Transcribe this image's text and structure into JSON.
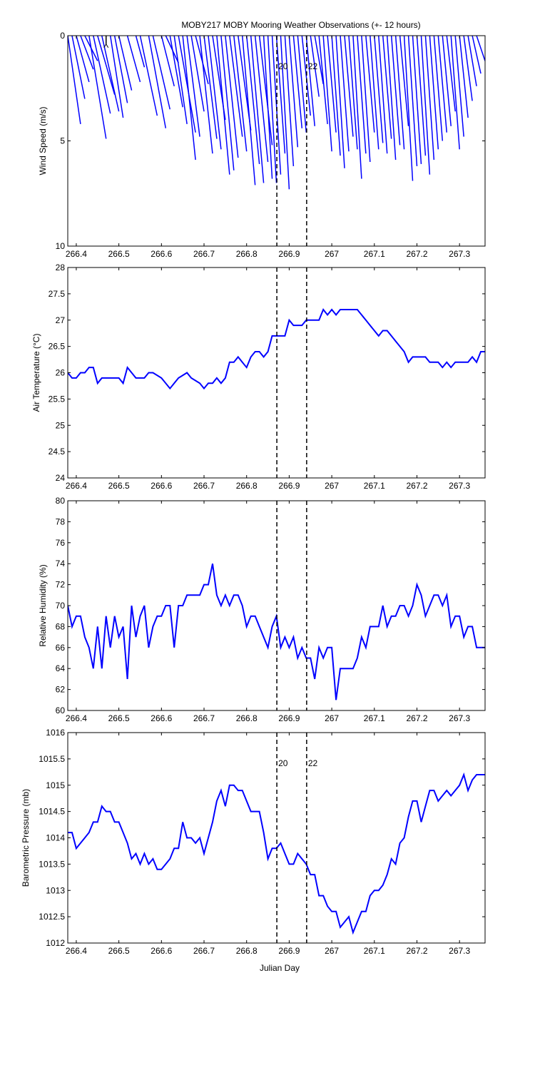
{
  "title": "MOBY217 MOBY Mooring Weather Observations (+- 12 hours)",
  "colors": {
    "series": "#0000ff",
    "marker_label": "#cc0000",
    "axis": "#000000"
  },
  "x_axis": {
    "label": "Julian Day",
    "range": [
      266.38,
      267.36
    ],
    "ticks": [
      "266.4",
      "266.5",
      "266.6",
      "266.7",
      "266.8",
      "266.9",
      "267",
      "267.1",
      "267.2",
      "267.3"
    ]
  },
  "markers": [
    {
      "x": 266.871,
      "label": "20"
    },
    {
      "x": 266.941,
      "label": "22"
    }
  ],
  "chart_data": [
    {
      "type": "vector",
      "ylabel": "Wind Speed (m/s)",
      "ylim": [
        0,
        10
      ],
      "y_reversed": true,
      "yticks": [
        "0",
        "5",
        "10"
      ],
      "grid": false,
      "vectors": [
        {
          "x": 266.38,
          "x_end": 266.41,
          "y_end": 4.2
        },
        {
          "x": 266.39,
          "x_end": 266.42,
          "y_end": 3.0
        },
        {
          "x": 266.4,
          "x_end": 266.43,
          "y_end": 2.2
        },
        {
          "x": 266.41,
          "x_end": 266.44,
          "y_end": 1.6
        },
        {
          "x": 266.42,
          "x_end": 266.45,
          "y_end": 1.2
        },
        {
          "x": 266.43,
          "x_end": 266.47,
          "y_end": 4.9
        },
        {
          "x": 266.44,
          "x_end": 266.48,
          "y_end": 3.7
        },
        {
          "x": 266.45,
          "x_end": 266.49,
          "y_end": 2.8
        },
        {
          "x": 266.46,
          "x_end": 266.5,
          "y_end": 3.6
        },
        {
          "x": 266.47,
          "x_end": 266.47,
          "y_end": 0.4,
          "highlight": true
        },
        {
          "x": 266.48,
          "x_end": 266.51,
          "y_end": 3.9
        },
        {
          "x": 266.49,
          "x_end": 266.52,
          "y_end": 3.2
        },
        {
          "x": 266.5,
          "x_end": 266.53,
          "y_end": 2.6
        },
        {
          "x": 266.52,
          "x_end": 266.55,
          "y_end": 2.2
        },
        {
          "x": 266.54,
          "x_end": 266.56,
          "y_end": 1.5
        },
        {
          "x": 266.55,
          "x_end": 266.59,
          "y_end": 3.8
        },
        {
          "x": 266.57,
          "x_end": 266.61,
          "y_end": 4.4
        },
        {
          "x": 266.58,
          "x_end": 266.62,
          "y_end": 3.5
        },
        {
          "x": 266.6,
          "x_end": 266.63,
          "y_end": 2.4
        },
        {
          "x": 266.61,
          "x_end": 266.64,
          "y_end": 1.3
        },
        {
          "x": 266.62,
          "x_end": 266.65,
          "y_end": 3.4
        },
        {
          "x": 266.63,
          "x_end": 266.66,
          "y_end": 4.2
        },
        {
          "x": 266.64,
          "x_end": 266.68,
          "y_end": 4.6
        },
        {
          "x": 266.65,
          "x_end": 266.68,
          "y_end": 5.9
        },
        {
          "x": 266.66,
          "x_end": 266.69,
          "y_end": 4.8
        },
        {
          "x": 266.67,
          "x_end": 266.7,
          "y_end": 3.6
        },
        {
          "x": 266.68,
          "x_end": 266.71,
          "y_end": 2.3
        },
        {
          "x": 266.69,
          "x_end": 266.72,
          "y_end": 5.6
        },
        {
          "x": 266.7,
          "x_end": 266.73,
          "y_end": 4.9
        },
        {
          "x": 266.71,
          "x_end": 266.74,
          "y_end": 5.4
        },
        {
          "x": 266.72,
          "x_end": 266.75,
          "y_end": 4.0
        },
        {
          "x": 266.73,
          "x_end": 266.76,
          "y_end": 6.6
        },
        {
          "x": 266.74,
          "x_end": 266.77,
          "y_end": 6.4
        },
        {
          "x": 266.75,
          "x_end": 266.78,
          "y_end": 5.8
        },
        {
          "x": 266.76,
          "x_end": 266.79,
          "y_end": 4.8
        },
        {
          "x": 266.77,
          "x_end": 266.8,
          "y_end": 5.5
        },
        {
          "x": 266.78,
          "x_end": 266.81,
          "y_end": 4.5
        },
        {
          "x": 266.79,
          "x_end": 266.82,
          "y_end": 7.1
        },
        {
          "x": 266.8,
          "x_end": 266.83,
          "y_end": 6.1
        },
        {
          "x": 266.81,
          "x_end": 266.84,
          "y_end": 7.0
        },
        {
          "x": 266.82,
          "x_end": 266.85,
          "y_end": 6.0
        },
        {
          "x": 266.83,
          "x_end": 266.86,
          "y_end": 5.2
        },
        {
          "x": 266.84,
          "x_end": 266.86,
          "y_end": 6.8
        },
        {
          "x": 266.85,
          "x_end": 266.87,
          "y_end": 7.0
        },
        {
          "x": 266.86,
          "x_end": 266.88,
          "y_end": 6.6
        },
        {
          "x": 266.87,
          "x_end": 266.89,
          "y_end": 5.6
        },
        {
          "x": 266.88,
          "x_end": 266.9,
          "y_end": 7.3
        },
        {
          "x": 266.89,
          "x_end": 266.91,
          "y_end": 6.2
        },
        {
          "x": 266.9,
          "x_end": 266.92,
          "y_end": 5.3
        },
        {
          "x": 266.91,
          "x_end": 266.93,
          "y_end": 4.4
        },
        {
          "x": 266.92,
          "x_end": 266.94,
          "y_end": 4.6
        },
        {
          "x": 266.93,
          "x_end": 266.95,
          "y_end": 3.8
        },
        {
          "x": 266.94,
          "x_end": 266.96,
          "y_end": 4.3
        },
        {
          "x": 266.95,
          "x_end": 266.97,
          "y_end": 2.9
        },
        {
          "x": 266.96,
          "x_end": 266.98,
          "y_end": 2.3
        },
        {
          "x": 266.97,
          "x_end": 266.99,
          "y_end": 4.2
        },
        {
          "x": 266.98,
          "x_end": 267.0,
          "y_end": 5.5
        },
        {
          "x": 266.99,
          "x_end": 267.01,
          "y_end": 4.6
        },
        {
          "x": 267.0,
          "x_end": 267.02,
          "y_end": 5.7
        },
        {
          "x": 267.01,
          "x_end": 267.03,
          "y_end": 6.3
        },
        {
          "x": 267.02,
          "x_end": 267.04,
          "y_end": 5.5
        },
        {
          "x": 267.03,
          "x_end": 267.05,
          "y_end": 4.8
        },
        {
          "x": 267.04,
          "x_end": 267.06,
          "y_end": 5.4
        },
        {
          "x": 267.05,
          "x_end": 267.07,
          "y_end": 6.8
        },
        {
          "x": 267.06,
          "x_end": 267.08,
          "y_end": 5.6
        },
        {
          "x": 267.07,
          "x_end": 267.09,
          "y_end": 6.0
        },
        {
          "x": 267.08,
          "x_end": 267.1,
          "y_end": 4.6
        },
        {
          "x": 267.09,
          "x_end": 267.11,
          "y_end": 5.4
        },
        {
          "x": 267.1,
          "x_end": 267.12,
          "y_end": 5.1
        },
        {
          "x": 267.11,
          "x_end": 267.13,
          "y_end": 5.6
        },
        {
          "x": 267.12,
          "x_end": 267.14,
          "y_end": 4.9
        },
        {
          "x": 267.13,
          "x_end": 267.15,
          "y_end": 5.9
        },
        {
          "x": 267.14,
          "x_end": 267.16,
          "y_end": 5.2
        },
        {
          "x": 267.15,
          "x_end": 267.17,
          "y_end": 5.4
        },
        {
          "x": 267.16,
          "x_end": 267.18,
          "y_end": 4.3
        },
        {
          "x": 267.17,
          "x_end": 267.19,
          "y_end": 6.9
        },
        {
          "x": 267.18,
          "x_end": 267.2,
          "y_end": 6.2
        },
        {
          "x": 267.19,
          "x_end": 267.21,
          "y_end": 6.1
        },
        {
          "x": 267.2,
          "x_end": 267.22,
          "y_end": 5.7
        },
        {
          "x": 267.21,
          "x_end": 267.23,
          "y_end": 6.6
        },
        {
          "x": 267.22,
          "x_end": 267.24,
          "y_end": 5.9
        },
        {
          "x": 267.23,
          "x_end": 267.25,
          "y_end": 5.4
        },
        {
          "x": 267.24,
          "x_end": 267.26,
          "y_end": 5.0
        },
        {
          "x": 267.25,
          "x_end": 267.27,
          "y_end": 4.6
        },
        {
          "x": 267.26,
          "x_end": 267.28,
          "y_end": 4.3
        },
        {
          "x": 267.27,
          "x_end": 267.29,
          "y_end": 3.6
        },
        {
          "x": 267.28,
          "x_end": 267.3,
          "y_end": 5.4
        },
        {
          "x": 267.29,
          "x_end": 267.31,
          "y_end": 4.8
        },
        {
          "x": 267.3,
          "x_end": 267.32,
          "y_end": 3.9
        },
        {
          "x": 267.31,
          "x_end": 267.33,
          "y_end": 3.1
        },
        {
          "x": 267.32,
          "x_end": 267.34,
          "y_end": 2.4
        },
        {
          "x": 267.33,
          "x_end": 267.35,
          "y_end": 1.8
        },
        {
          "x": 267.34,
          "x_end": 267.36,
          "y_end": 1.2
        }
      ]
    },
    {
      "type": "line",
      "ylabel": "Air Temperature (°C)",
      "ylim": [
        24,
        28
      ],
      "yticks": [
        "24",
        "24.5",
        "25",
        "25.5",
        "26",
        "26.5",
        "27",
        "27.5",
        "28"
      ],
      "grid": false,
      "x": [
        266.38,
        266.39,
        266.4,
        266.41,
        266.42,
        266.43,
        266.44,
        266.45,
        266.46,
        266.47,
        266.48,
        266.5,
        266.51,
        266.52,
        266.54,
        266.56,
        266.57,
        266.58,
        266.6,
        266.62,
        266.63,
        266.64,
        266.66,
        266.67,
        266.69,
        266.7,
        266.71,
        266.72,
        266.73,
        266.74,
        266.75,
        266.76,
        266.77,
        266.78,
        266.79,
        266.8,
        266.81,
        266.82,
        266.83,
        266.84,
        266.85,
        266.86,
        266.87,
        266.88,
        266.89,
        266.9,
        266.91,
        266.92,
        266.93,
        266.94,
        266.95,
        266.96,
        266.97,
        266.98,
        266.99,
        267.0,
        267.01,
        267.02,
        267.03,
        267.04,
        267.05,
        267.06,
        267.07,
        267.08,
        267.09,
        267.1,
        267.11,
        267.12,
        267.13,
        267.14,
        267.15,
        267.16,
        267.17,
        267.18,
        267.19,
        267.2,
        267.21,
        267.22,
        267.23,
        267.24,
        267.25,
        267.26,
        267.27,
        267.28,
        267.29,
        267.3,
        267.31,
        267.32,
        267.33,
        267.34,
        267.35,
        267.36
      ],
      "y": [
        26.0,
        25.9,
        25.9,
        26.0,
        26.0,
        26.1,
        26.1,
        25.8,
        25.9,
        25.9,
        25.9,
        25.9,
        25.8,
        26.1,
        25.9,
        25.9,
        26.0,
        26.0,
        25.9,
        25.7,
        25.8,
        25.9,
        26.0,
        25.9,
        25.8,
        25.7,
        25.8,
        25.8,
        25.9,
        25.8,
        25.9,
        26.2,
        26.2,
        26.3,
        26.2,
        26.1,
        26.3,
        26.4,
        26.4,
        26.3,
        26.4,
        26.7,
        26.7,
        26.7,
        26.7,
        27.0,
        26.9,
        26.9,
        26.9,
        27.0,
        27.0,
        27.0,
        27.0,
        27.2,
        27.1,
        27.2,
        27.1,
        27.2,
        27.2,
        27.2,
        27.2,
        27.2,
        27.1,
        27.0,
        26.9,
        26.8,
        26.7,
        26.8,
        26.8,
        26.7,
        26.6,
        26.5,
        26.4,
        26.2,
        26.3,
        26.3,
        26.3,
        26.3,
        26.2,
        26.2,
        26.2,
        26.1,
        26.2,
        26.1,
        26.2,
        26.2,
        26.2,
        26.2,
        26.3,
        26.2,
        26.4,
        26.4
      ]
    },
    {
      "type": "line",
      "ylabel": "Relative Humidity (%)",
      "ylim": [
        60,
        80
      ],
      "yticks": [
        "60",
        "62",
        "64",
        "66",
        "68",
        "70",
        "72",
        "74",
        "76",
        "78",
        "80"
      ],
      "grid": false,
      "x": [
        266.38,
        266.39,
        266.4,
        266.41,
        266.42,
        266.43,
        266.44,
        266.45,
        266.46,
        266.47,
        266.48,
        266.49,
        266.5,
        266.51,
        266.52,
        266.53,
        266.54,
        266.55,
        266.56,
        266.57,
        266.58,
        266.59,
        266.6,
        266.61,
        266.62,
        266.63,
        266.64,
        266.65,
        266.66,
        266.67,
        266.68,
        266.69,
        266.7,
        266.71,
        266.72,
        266.73,
        266.74,
        266.75,
        266.76,
        266.77,
        266.78,
        266.79,
        266.8,
        266.81,
        266.82,
        266.83,
        266.84,
        266.85,
        266.86,
        266.87,
        266.88,
        266.89,
        266.9,
        266.91,
        266.92,
        266.93,
        266.94,
        266.95,
        266.96,
        266.97,
        266.98,
        266.99,
        267.0,
        267.01,
        267.02,
        267.03,
        267.04,
        267.05,
        267.06,
        267.07,
        267.08,
        267.09,
        267.1,
        267.11,
        267.12,
        267.13,
        267.14,
        267.15,
        267.16,
        267.17,
        267.18,
        267.19,
        267.2,
        267.21,
        267.22,
        267.23,
        267.24,
        267.25,
        267.26,
        267.27,
        267.28,
        267.29,
        267.3,
        267.31,
        267.32,
        267.33,
        267.34,
        267.35,
        267.36
      ],
      "y": [
        70,
        68,
        69,
        69,
        67,
        66,
        64,
        68,
        64,
        69,
        66,
        69,
        67,
        68,
        63,
        70,
        67,
        69,
        70,
        66,
        68,
        69,
        69,
        70,
        70,
        66,
        70,
        70,
        71,
        71,
        71,
        71,
        72,
        72,
        74,
        71,
        70,
        71,
        70,
        71,
        71,
        70,
        68,
        69,
        69,
        68,
        67,
        66,
        68,
        69,
        66,
        67,
        66,
        67,
        65,
        66,
        65,
        65,
        63,
        66,
        65,
        66,
        66,
        61,
        64,
        64,
        64,
        64,
        65,
        67,
        66,
        68,
        68,
        68,
        70,
        68,
        69,
        69,
        70,
        70,
        69,
        70,
        72,
        71,
        69,
        70,
        71,
        71,
        70,
        71,
        68,
        69,
        69,
        67,
        68,
        68,
        66,
        66,
        66
      ],
      "x_end_note": ""
    },
    {
      "type": "line",
      "ylabel": "Barometric Pressure (mb)",
      "ylim": [
        1012,
        1016
      ],
      "yticks": [
        "1012",
        "1012.5",
        "1013",
        "1013.5",
        "1014",
        "1014.5",
        "1015",
        "1015.5",
        "1016"
      ],
      "grid": false,
      "x": [
        266.38,
        266.39,
        266.4,
        266.41,
        266.42,
        266.43,
        266.44,
        266.45,
        266.46,
        266.47,
        266.48,
        266.49,
        266.5,
        266.51,
        266.52,
        266.53,
        266.54,
        266.55,
        266.56,
        266.57,
        266.58,
        266.59,
        266.6,
        266.61,
        266.62,
        266.63,
        266.64,
        266.65,
        266.66,
        266.67,
        266.68,
        266.69,
        266.7,
        266.71,
        266.72,
        266.73,
        266.74,
        266.75,
        266.76,
        266.77,
        266.78,
        266.79,
        266.8,
        266.81,
        266.82,
        266.83,
        266.84,
        266.85,
        266.86,
        266.87,
        266.88,
        266.89,
        266.9,
        266.91,
        266.92,
        266.93,
        266.94,
        266.95,
        266.96,
        266.97,
        266.98,
        266.99,
        267.0,
        267.01,
        267.02,
        267.03,
        267.04,
        267.05,
        267.06,
        267.07,
        267.08,
        267.09,
        267.1,
        267.11,
        267.12,
        267.13,
        267.14,
        267.15,
        267.16,
        267.17,
        267.18,
        267.19,
        267.2,
        267.21,
        267.22,
        267.23,
        267.24,
        267.25,
        267.26,
        267.27,
        267.28,
        267.29,
        267.3,
        267.31,
        267.32,
        267.33,
        267.34,
        267.35,
        267.36
      ],
      "y": [
        1014.1,
        1014.1,
        1013.8,
        1013.9,
        1014.0,
        1014.1,
        1014.3,
        1014.3,
        1014.6,
        1014.5,
        1014.5,
        1014.3,
        1014.3,
        1014.1,
        1013.9,
        1013.6,
        1013.7,
        1013.5,
        1013.7,
        1013.5,
        1013.6,
        1013.4,
        1013.4,
        1013.5,
        1013.6,
        1013.8,
        1013.8,
        1014.3,
        1014.0,
        1014.0,
        1013.9,
        1014.0,
        1013.7,
        1014.0,
        1014.3,
        1014.7,
        1014.9,
        1014.6,
        1015.0,
        1015.0,
        1014.9,
        1014.9,
        1014.7,
        1014.5,
        1014.5,
        1014.5,
        1014.1,
        1013.6,
        1013.8,
        1013.8,
        1013.9,
        1013.7,
        1013.5,
        1013.5,
        1013.7,
        1013.6,
        1013.5,
        1013.3,
        1013.3,
        1012.9,
        1012.9,
        1012.7,
        1012.6,
        1012.6,
        1012.3,
        1012.4,
        1012.5,
        1012.2,
        1012.4,
        1012.6,
        1012.6,
        1012.9,
        1013.0,
        1013.0,
        1013.1,
        1013.3,
        1013.6,
        1013.5,
        1013.9,
        1014.0,
        1014.4,
        1014.7,
        1014.7,
        1014.3,
        1014.6,
        1014.9,
        1014.9,
        1014.7,
        1014.8,
        1014.9,
        1014.8,
        1014.9,
        1015.0,
        1015.2,
        1014.9,
        1015.1,
        1015.2,
        1015.2,
        1015.2
      ],
      "marker_labels_shown": true
    }
  ]
}
